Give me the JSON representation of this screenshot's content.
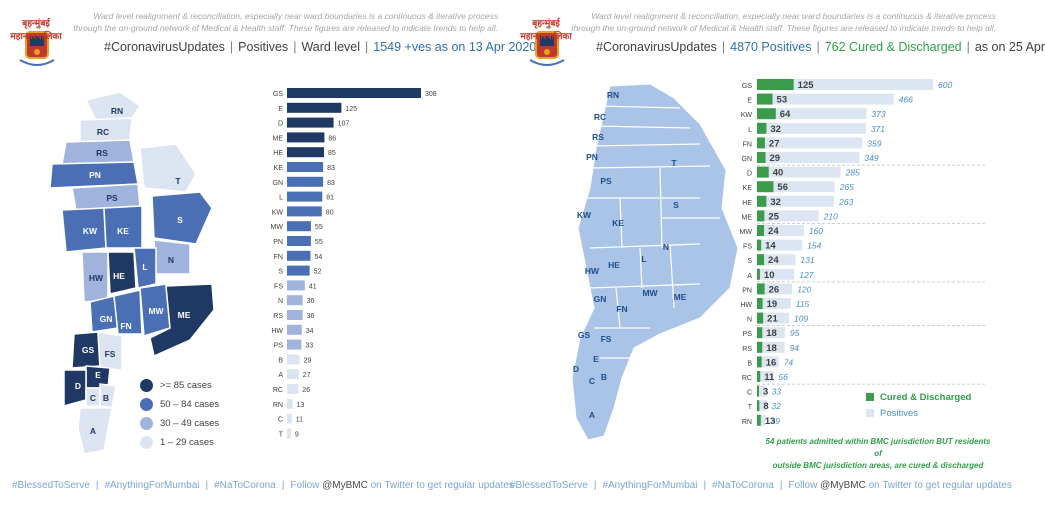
{
  "left": {
    "note_lines": [
      "Ward level realignment & reconciliation, especially near ward boundaries is a continuous & iterative process",
      "through the on-ground network of Medical & Health staff. These figures are released to indicate trends to help all."
    ],
    "logo_text": "बृहन्मुंबई महानगरपालिका",
    "headline": {
      "hashtag": "#CoronavirusUpdates",
      "positives": "Positives",
      "ward": "Ward level",
      "count_text": "1549 +ves as on 13 Apr 2020"
    },
    "legend": [
      {
        "label": ">= 85 cases",
        "color": "#1f3864"
      },
      {
        "label": "50 – 84 cases",
        "color": "#4a6fb5"
      },
      {
        "label": "30 – 49 cases",
        "color": "#9fb3dc"
      },
      {
        "label": "1 – 29 cases",
        "color": "#dce4f2"
      }
    ],
    "map_labels": [
      "RN",
      "RC",
      "RS",
      "PN",
      "PS",
      "T",
      "KW",
      "KE",
      "S",
      "L",
      "N",
      "HW",
      "HE",
      "GN",
      "FN",
      "MW",
      "ME",
      "GS",
      "FS",
      "E",
      "D",
      "C",
      "B",
      "A"
    ],
    "colors": {
      "dark": "#1f3864",
      "mid": "#4a6fb5",
      "light": "#9fb3dc",
      "pale": "#dce4f2"
    }
  },
  "right": {
    "note_lines": [
      "Ward level realignment & reconciliation, especially near ward boundaries is a continuous & iterative process",
      "through the on-ground network of Medical & Health staff. These figures are released to indicate trends to help all."
    ],
    "logo_text": "बृहन्मुंबई महानगरपालिका",
    "headline": {
      "hashtag": "#CoronavirusUpdates",
      "positives": "4870 Positives",
      "cured": "762 Cured & Discharged",
      "date": "as on 25 Apr"
    },
    "map_labels": [
      "RN",
      "RC",
      "RS",
      "PN",
      "PS",
      "T",
      "KW",
      "KE",
      "S",
      "N",
      "L",
      "HW",
      "HE",
      "GN",
      "FN",
      "MW",
      "ME",
      "GS",
      "FS",
      "E",
      "D",
      "C",
      "B",
      "A"
    ],
    "legend": [
      {
        "label": "Cured & Discharged",
        "color": "#3a9b4a"
      },
      {
        "label": "Positives",
        "color": "#dce6f2"
      }
    ],
    "bottom_note_lines": [
      "54 patients admitted within BMC jurisdiction BUT residents of",
      "outside BMC jurisdiction areas, are cured & discharged"
    ],
    "colors": {
      "cured": "#3a9b4a",
      "positives": "#dce6f2",
      "map": "#a9c4e6"
    }
  },
  "chart_data": [
    {
      "type": "bar",
      "orientation": "horizontal",
      "title": "Positives | Ward level",
      "categories": [
        "GS",
        "E",
        "D",
        "ME",
        "HE",
        "KE",
        "GN",
        "L",
        "KW",
        "MW",
        "PN",
        "FN",
        "S",
        "FS",
        "N",
        "RS",
        "HW",
        "PS",
        "B",
        "A",
        "RC",
        "RN",
        "C",
        "T"
      ],
      "values": [
        308,
        125,
        107,
        86,
        85,
        83,
        83,
        81,
        80,
        55,
        55,
        54,
        52,
        41,
        36,
        36,
        34,
        33,
        29,
        27,
        26,
        13,
        11,
        9
      ],
      "xlim": [
        0,
        320
      ]
    },
    {
      "type": "bar",
      "orientation": "horizontal",
      "title": "Positives and Cured & Discharged",
      "categories": [
        "GS",
        "E",
        "KW",
        "L",
        "FN",
        "GN",
        "D",
        "KE",
        "HE",
        "ME",
        "MW",
        "FS",
        "S",
        "A",
        "PN",
        "HW",
        "N",
        "PS",
        "RS",
        "B",
        "RC",
        "C",
        "T",
        "RN"
      ],
      "series": [
        {
          "name": "Cured & Discharged",
          "values": [
            125,
            53,
            64,
            32,
            27,
            29,
            40,
            56,
            32,
            25,
            24,
            14,
            24,
            10,
            26,
            19,
            21,
            18,
            18,
            16,
            11,
            3,
            8,
            13
          ]
        },
        {
          "name": "Positives",
          "values": [
            600,
            466,
            373,
            371,
            359,
            349,
            285,
            265,
            263,
            210,
            160,
            154,
            131,
            127,
            120,
            115,
            109,
            95,
            94,
            74,
            56,
            33,
            32,
            29
          ]
        }
      ],
      "xlim": [
        0,
        620
      ]
    }
  ],
  "footer": {
    "items": [
      "#BlessedToServe",
      "#AnythingForMumbai",
      "#NaToCorona"
    ],
    "follow": "Follow",
    "handle": "@MyBMC",
    "tail": "on Twitter to get regular updates"
  }
}
